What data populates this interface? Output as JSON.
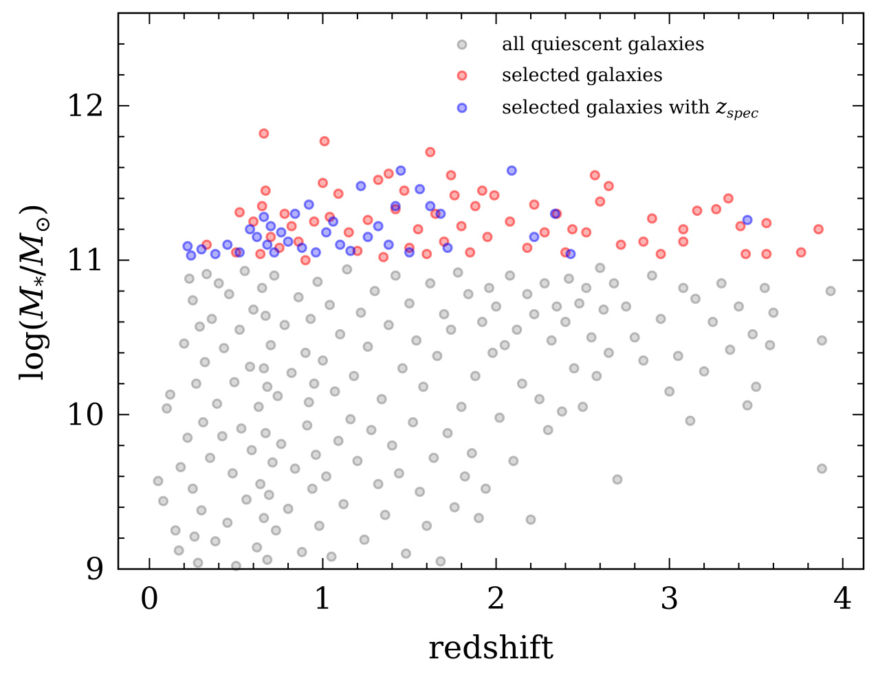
{
  "chart_data": {
    "type": "scatter",
    "title": "",
    "xlabel": "redshift",
    "ylabel": "log(M*/M⊙)",
    "xlim": [
      -0.18,
      4.12
    ],
    "ylim": [
      9,
      12.6
    ],
    "xticks": [
      0,
      1,
      2,
      3,
      4
    ],
    "xtick_labels": [
      "0",
      "1",
      "2",
      "3",
      "4"
    ],
    "yticks": [
      9,
      10,
      11,
      12
    ],
    "ytick_labels": [
      "9",
      "10",
      "11",
      "12"
    ],
    "grid": false,
    "legend_position": "top-right",
    "series": [
      {
        "name": "all quiescent galaxies",
        "color": "#808080",
        "points": [
          [
            0.05,
            9.57
          ],
          [
            0.08,
            9.44
          ],
          [
            0.1,
            10.04
          ],
          [
            0.12,
            10.13
          ],
          [
            0.15,
            9.25
          ],
          [
            0.17,
            9.12
          ],
          [
            0.18,
            9.66
          ],
          [
            0.2,
            10.46
          ],
          [
            0.22,
            9.85
          ],
          [
            0.23,
            10.88
          ],
          [
            0.25,
            9.52
          ],
          [
            0.25,
            10.74
          ],
          [
            0.26,
            9.21
          ],
          [
            0.27,
            10.2
          ],
          [
            0.28,
            9.04
          ],
          [
            0.29,
            10.57
          ],
          [
            0.3,
            9.38
          ],
          [
            0.31,
            9.95
          ],
          [
            0.32,
            10.34
          ],
          [
            0.33,
            10.91
          ],
          [
            0.35,
            9.72
          ],
          [
            0.36,
            10.62
          ],
          [
            0.38,
            9.18
          ],
          [
            0.39,
            10.07
          ],
          [
            0.4,
            10.85
          ],
          [
            0.42,
            9.86
          ],
          [
            0.43,
            10.43
          ],
          [
            0.45,
            9.3
          ],
          [
            0.46,
            10.78
          ],
          [
            0.48,
            9.62
          ],
          [
            0.49,
            10.21
          ],
          [
            0.5,
            9.02
          ],
          [
            0.52,
            10.55
          ],
          [
            0.53,
            9.91
          ],
          [
            0.55,
            10.93
          ],
          [
            0.56,
            9.45
          ],
          [
            0.58,
            10.31
          ],
          [
            0.59,
            9.77
          ],
          [
            0.6,
            10.68
          ],
          [
            0.62,
            9.14
          ],
          [
            0.63,
            10.05
          ],
          [
            0.64,
            9.55
          ],
          [
            0.65,
            10.82
          ],
          [
            0.66,
            9.33
          ],
          [
            0.66,
            10.3
          ],
          [
            0.67,
            9.88
          ],
          [
            0.67,
            10.64
          ],
          [
            0.68,
            9.06
          ],
          [
            0.68,
            10.18
          ],
          [
            0.69,
            9.48
          ],
          [
            0.7,
            10.45
          ],
          [
            0.71,
            9.69
          ],
          [
            0.72,
            10.9
          ],
          [
            0.73,
            9.25
          ],
          [
            0.74,
            10.12
          ],
          [
            0.76,
            9.81
          ],
          [
            0.78,
            10.58
          ],
          [
            0.8,
            9.39
          ],
          [
            0.82,
            10.27
          ],
          [
            0.84,
            9.65
          ],
          [
            0.86,
            10.76
          ],
          [
            0.88,
            9.11
          ],
          [
            0.9,
            10.4
          ],
          [
            0.91,
            9.93
          ],
          [
            0.92,
            10.08
          ],
          [
            0.93,
            10.62
          ],
          [
            0.94,
            9.52
          ],
          [
            0.95,
            10.2
          ],
          [
            0.96,
            9.74
          ],
          [
            0.97,
            10.86
          ],
          [
            0.98,
            9.28
          ],
          [
            1.0,
            10.35
          ],
          [
            1.02,
            9.6
          ],
          [
            1.04,
            10.71
          ],
          [
            1.05,
            9.08
          ],
          [
            1.07,
            10.15
          ],
          [
            1.09,
            9.83
          ],
          [
            1.1,
            10.52
          ],
          [
            1.12,
            9.42
          ],
          [
            1.14,
            10.94
          ],
          [
            1.16,
            9.97
          ],
          [
            1.18,
            10.25
          ],
          [
            1.2,
            9.7
          ],
          [
            1.22,
            10.66
          ],
          [
            1.24,
            9.19
          ],
          [
            1.26,
            10.44
          ],
          [
            1.28,
            9.9
          ],
          [
            1.3,
            10.8
          ],
          [
            1.32,
            9.55
          ],
          [
            1.34,
            10.1
          ],
          [
            1.36,
            9.35
          ],
          [
            1.38,
            10.58
          ],
          [
            1.4,
            9.8
          ],
          [
            1.42,
            10.9
          ],
          [
            1.44,
            9.62
          ],
          [
            1.46,
            10.3
          ],
          [
            1.48,
            9.1
          ],
          [
            1.5,
            10.72
          ],
          [
            1.52,
            9.95
          ],
          [
            1.54,
            10.48
          ],
          [
            1.56,
            9.5
          ],
          [
            1.58,
            10.18
          ],
          [
            1.6,
            9.28
          ],
          [
            1.62,
            10.85
          ],
          [
            1.64,
            9.72
          ],
          [
            1.66,
            10.38
          ],
          [
            1.68,
            9.05
          ],
          [
            1.7,
            10.65
          ],
          [
            1.72,
            9.88
          ],
          [
            1.74,
            10.55
          ],
          [
            1.76,
            9.4
          ],
          [
            1.78,
            10.92
          ],
          [
            1.8,
            10.05
          ],
          [
            1.82,
            9.6
          ],
          [
            1.84,
            10.78
          ],
          [
            1.86,
            9.75
          ],
          [
            1.88,
            10.25
          ],
          [
            1.9,
            9.33
          ],
          [
            1.92,
            10.6
          ],
          [
            1.94,
            9.52
          ],
          [
            1.96,
            10.82
          ],
          [
            1.98,
            10.4
          ],
          [
            2.0,
            10.7
          ],
          [
            2.02,
            9.98
          ],
          [
            2.05,
            10.45
          ],
          [
            2.08,
            10.9
          ],
          [
            2.1,
            9.7
          ],
          [
            2.12,
            10.55
          ],
          [
            2.15,
            10.2
          ],
          [
            2.18,
            10.78
          ],
          [
            2.2,
            9.32
          ],
          [
            2.22,
            10.65
          ],
          [
            2.25,
            10.1
          ],
          [
            2.28,
            10.85
          ],
          [
            2.3,
            9.9
          ],
          [
            2.32,
            10.48
          ],
          [
            2.35,
            10.7
          ],
          [
            2.38,
            10.02
          ],
          [
            2.4,
            10.6
          ],
          [
            2.42,
            10.88
          ],
          [
            2.45,
            10.3
          ],
          [
            2.48,
            10.72
          ],
          [
            2.5,
            10.05
          ],
          [
            2.52,
            10.82
          ],
          [
            2.55,
            10.5
          ],
          [
            2.58,
            10.25
          ],
          [
            2.6,
            10.95
          ],
          [
            2.62,
            10.68
          ],
          [
            2.65,
            10.4
          ],
          [
            2.68,
            10.85
          ],
          [
            2.7,
            9.58
          ],
          [
            2.75,
            10.7
          ],
          [
            2.8,
            10.5
          ],
          [
            2.85,
            10.35
          ],
          [
            2.9,
            10.9
          ],
          [
            2.95,
            10.62
          ],
          [
            3.0,
            10.15
          ],
          [
            3.05,
            10.38
          ],
          [
            3.08,
            10.82
          ],
          [
            3.12,
            9.96
          ],
          [
            3.15,
            10.75
          ],
          [
            3.2,
            10.28
          ],
          [
            3.25,
            10.6
          ],
          [
            3.3,
            10.85
          ],
          [
            3.35,
            10.42
          ],
          [
            3.4,
            10.7
          ],
          [
            3.45,
            10.06
          ],
          [
            3.48,
            10.52
          ],
          [
            3.5,
            10.18
          ],
          [
            3.55,
            10.82
          ],
          [
            3.58,
            10.45
          ],
          [
            3.6,
            10.66
          ],
          [
            3.88,
            10.48
          ],
          [
            3.88,
            9.65
          ],
          [
            3.93,
            10.8
          ]
        ]
      },
      {
        "name": "selected galaxies",
        "color": "#ff0000",
        "points": [
          [
            0.33,
            11.1
          ],
          [
            0.5,
            11.05
          ],
          [
            0.52,
            11.31
          ],
          [
            0.6,
            11.25
          ],
          [
            0.64,
            11.04
          ],
          [
            0.65,
            11.35
          ],
          [
            0.66,
            11.82
          ],
          [
            0.67,
            11.45
          ],
          [
            0.7,
            11.15
          ],
          [
            0.75,
            11.08
          ],
          [
            0.78,
            11.3
          ],
          [
            0.82,
            11.22
          ],
          [
            0.86,
            11.12
          ],
          [
            0.9,
            11.0
          ],
          [
            0.95,
            11.25
          ],
          [
            1.0,
            11.5
          ],
          [
            1.01,
            11.77
          ],
          [
            1.04,
            11.28
          ],
          [
            1.09,
            11.43
          ],
          [
            1.15,
            11.18
          ],
          [
            1.2,
            11.06
          ],
          [
            1.26,
            11.26
          ],
          [
            1.32,
            11.52
          ],
          [
            1.35,
            11.02
          ],
          [
            1.38,
            11.56
          ],
          [
            1.42,
            11.33
          ],
          [
            1.47,
            11.45
          ],
          [
            1.5,
            11.08
          ],
          [
            1.55,
            11.2
          ],
          [
            1.6,
            11.04
          ],
          [
            1.62,
            11.7
          ],
          [
            1.65,
            11.3
          ],
          [
            1.7,
            11.12
          ],
          [
            1.74,
            11.55
          ],
          [
            1.76,
            11.42
          ],
          [
            1.8,
            11.22
          ],
          [
            1.85,
            11.05
          ],
          [
            1.88,
            11.35
          ],
          [
            1.92,
            11.45
          ],
          [
            1.95,
            11.15
          ],
          [
            1.99,
            11.42
          ],
          [
            2.08,
            11.25
          ],
          [
            2.18,
            11.08
          ],
          [
            2.22,
            11.36
          ],
          [
            2.28,
            11.18
          ],
          [
            2.35,
            11.3
          ],
          [
            2.4,
            11.05
          ],
          [
            2.44,
            11.2
          ],
          [
            2.52,
            11.18
          ],
          [
            2.57,
            11.55
          ],
          [
            2.6,
            11.38
          ],
          [
            2.65,
            11.48
          ],
          [
            2.72,
            11.1
          ],
          [
            2.85,
            11.12
          ],
          [
            2.9,
            11.27
          ],
          [
            2.95,
            11.04
          ],
          [
            3.08,
            11.12
          ],
          [
            3.08,
            11.2
          ],
          [
            3.16,
            11.32
          ],
          [
            3.27,
            11.33
          ],
          [
            3.34,
            11.4
          ],
          [
            3.41,
            11.22
          ],
          [
            3.44,
            11.04
          ],
          [
            3.56,
            11.24
          ],
          [
            3.56,
            11.04
          ],
          [
            3.76,
            11.05
          ],
          [
            3.86,
            11.2
          ]
        ]
      },
      {
        "name": "selected galaxies with z_spec",
        "color": "#0000ff",
        "points": [
          [
            0.22,
            11.09
          ],
          [
            0.24,
            11.03
          ],
          [
            0.3,
            11.07
          ],
          [
            0.38,
            11.04
          ],
          [
            0.45,
            11.1
          ],
          [
            0.52,
            11.05
          ],
          [
            0.58,
            11.2
          ],
          [
            0.62,
            11.15
          ],
          [
            0.66,
            11.28
          ],
          [
            0.68,
            11.1
          ],
          [
            0.7,
            11.22
          ],
          [
            0.72,
            11.05
          ],
          [
            0.76,
            11.18
          ],
          [
            0.8,
            11.12
          ],
          [
            0.84,
            11.3
          ],
          [
            0.88,
            11.08
          ],
          [
            0.92,
            11.36
          ],
          [
            0.96,
            11.05
          ],
          [
            1.02,
            11.18
          ],
          [
            1.06,
            11.25
          ],
          [
            1.1,
            11.1
          ],
          [
            1.16,
            11.06
          ],
          [
            1.22,
            11.48
          ],
          [
            1.26,
            11.15
          ],
          [
            1.32,
            11.22
          ],
          [
            1.38,
            11.1
          ],
          [
            1.42,
            11.35
          ],
          [
            1.45,
            11.58
          ],
          [
            1.5,
            11.05
          ],
          [
            1.56,
            11.46
          ],
          [
            1.62,
            11.35
          ],
          [
            1.68,
            11.3
          ],
          [
            1.72,
            11.08
          ],
          [
            2.09,
            11.58
          ],
          [
            2.22,
            11.15
          ],
          [
            2.34,
            11.3
          ],
          [
            2.43,
            11.04
          ],
          [
            3.45,
            11.26
          ]
        ]
      }
    ]
  },
  "legend": {
    "items": [
      {
        "label": "all quiescent galaxies"
      },
      {
        "label": "selected galaxies"
      },
      {
        "label_main": "selected galaxies with ",
        "label_math": "z",
        "label_sub": "spec"
      }
    ]
  },
  "axes": {
    "xlabel": "redshift",
    "ylabel_prefix": "log(",
    "ylabel_M": "M",
    "ylabel_star": "*",
    "ylabel_slash": "/",
    "ylabel_sun": "⊙",
    "ylabel_suffix": ")"
  }
}
